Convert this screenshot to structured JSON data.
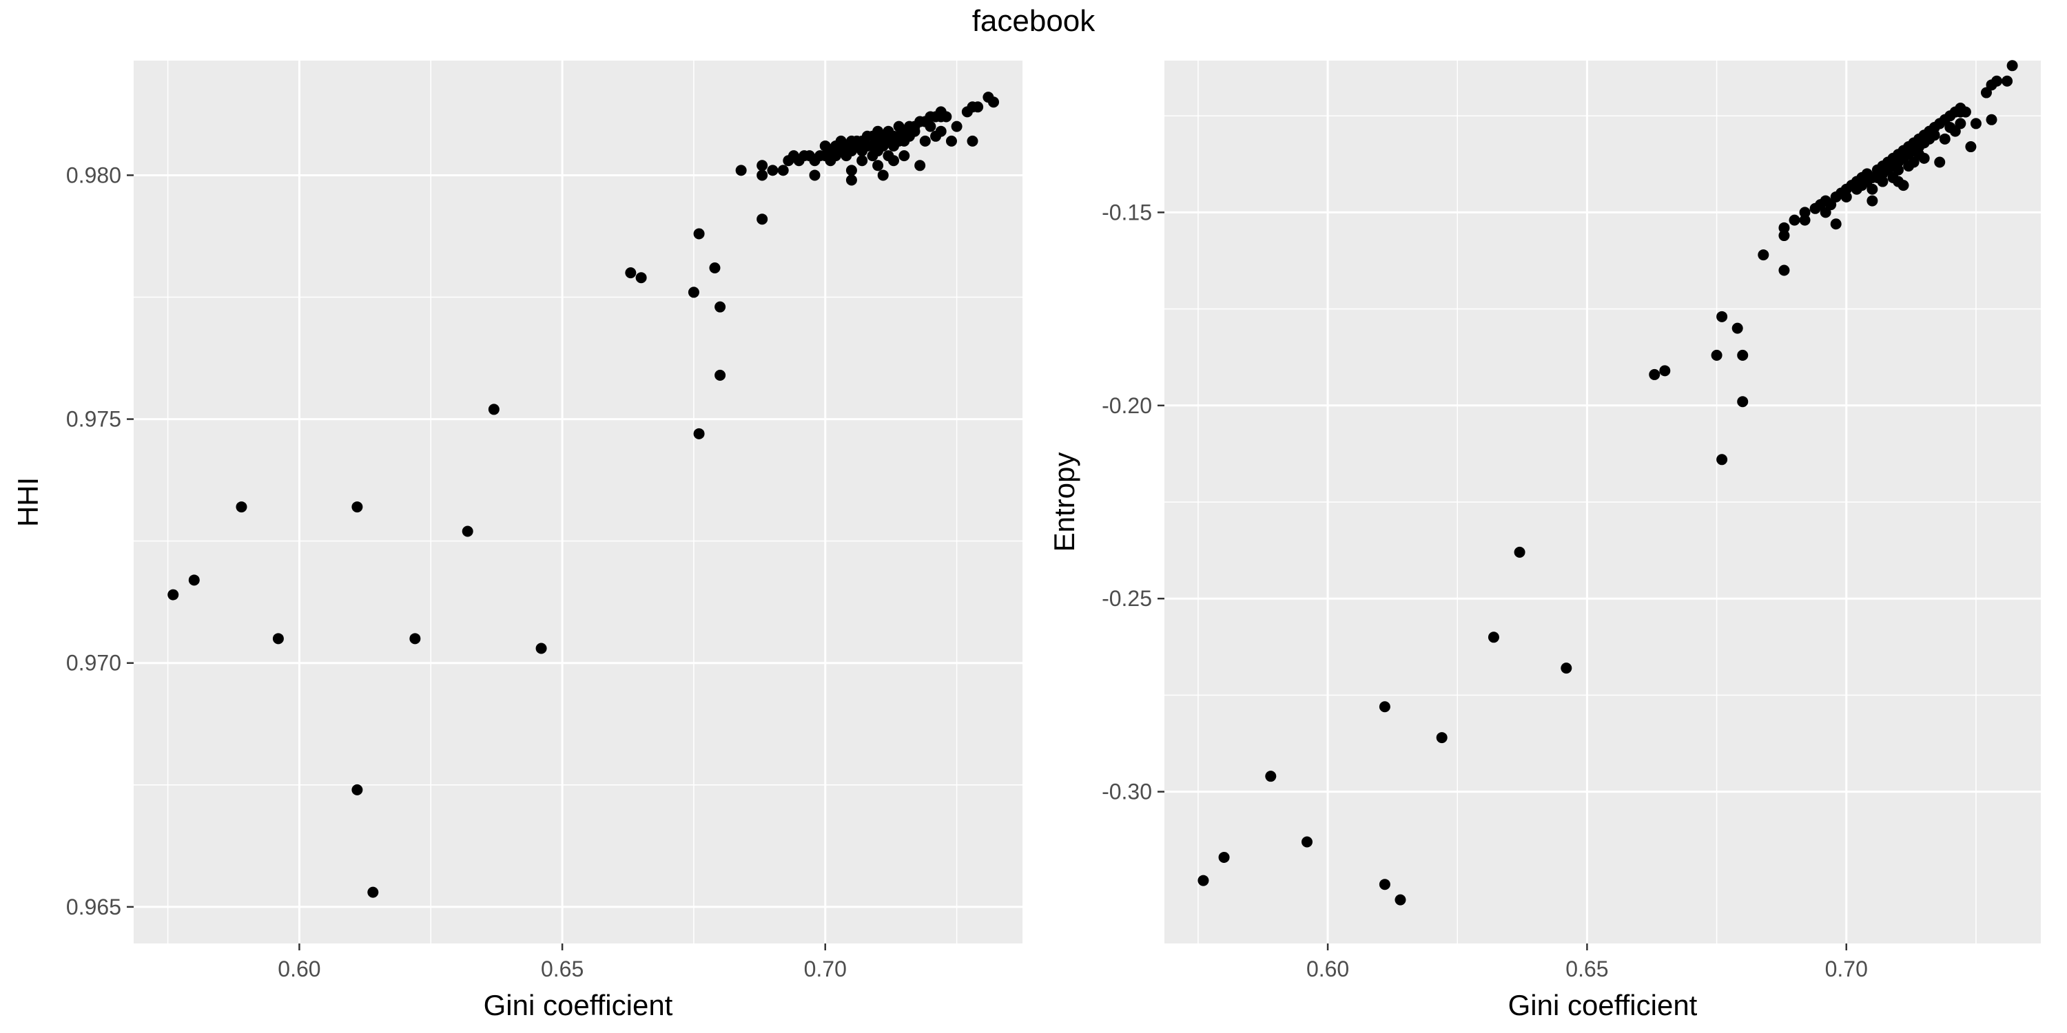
{
  "page_title": "facebook",
  "chart_data": [
    {
      "type": "scatter",
      "title": "",
      "xlabel": "Gini coefficient",
      "ylabel": "HHI",
      "xlim": [
        0.5685,
        0.7375
      ],
      "ylim": [
        0.96425,
        0.98235
      ],
      "xticks": [
        0.6,
        0.65,
        0.7
      ],
      "xtick_labels": [
        "0.60",
        "0.65",
        "0.70"
      ],
      "yticks": [
        0.965,
        0.97,
        0.975,
        0.98
      ],
      "ytick_labels": [
        "0.965",
        "0.970",
        "0.975",
        "0.980"
      ],
      "grid": true,
      "points": [
        [
          0.576,
          0.9714
        ],
        [
          0.58,
          0.9717
        ],
        [
          0.589,
          0.9732
        ],
        [
          0.596,
          0.9705
        ],
        [
          0.611,
          0.9732
        ],
        [
          0.611,
          0.9674
        ],
        [
          0.614,
          0.9653
        ],
        [
          0.622,
          0.9705
        ],
        [
          0.632,
          0.9727
        ],
        [
          0.637,
          0.9752
        ],
        [
          0.646,
          0.9703
        ],
        [
          0.663,
          0.978
        ],
        [
          0.665,
          0.9779
        ],
        [
          0.675,
          0.9776
        ],
        [
          0.676,
          0.9747
        ],
        [
          0.676,
          0.9788
        ],
        [
          0.679,
          0.9781
        ],
        [
          0.68,
          0.9773
        ],
        [
          0.68,
          0.9759
        ],
        [
          0.684,
          0.9801
        ],
        [
          0.688,
          0.9791
        ],
        [
          0.688,
          0.98
        ],
        [
          0.688,
          0.9802
        ],
        [
          0.69,
          0.9801
        ],
        [
          0.692,
          0.9801
        ],
        [
          0.693,
          0.9803
        ],
        [
          0.694,
          0.9804
        ],
        [
          0.695,
          0.9803
        ],
        [
          0.696,
          0.9804
        ],
        [
          0.697,
          0.9804
        ],
        [
          0.698,
          0.9803
        ],
        [
          0.698,
          0.98
        ],
        [
          0.699,
          0.9804
        ],
        [
          0.7,
          0.9804
        ],
        [
          0.7,
          0.9806
        ],
        [
          0.701,
          0.9805
        ],
        [
          0.701,
          0.9803
        ],
        [
          0.702,
          0.9806
        ],
        [
          0.702,
          0.9804
        ],
        [
          0.703,
          0.9807
        ],
        [
          0.703,
          0.9805
        ],
        [
          0.704,
          0.9806
        ],
        [
          0.704,
          0.9804
        ],
        [
          0.705,
          0.9807
        ],
        [
          0.705,
          0.9805
        ],
        [
          0.705,
          0.9801
        ],
        [
          0.705,
          0.9799
        ],
        [
          0.706,
          0.9807
        ],
        [
          0.706,
          0.9806
        ],
        [
          0.707,
          0.9807
        ],
        [
          0.707,
          0.9805
        ],
        [
          0.707,
          0.9803
        ],
        [
          0.708,
          0.9808
        ],
        [
          0.708,
          0.9806
        ],
        [
          0.709,
          0.9808
        ],
        [
          0.709,
          0.9806
        ],
        [
          0.709,
          0.9804
        ],
        [
          0.71,
          0.9809
        ],
        [
          0.71,
          0.9807
        ],
        [
          0.71,
          0.9805
        ],
        [
          0.71,
          0.9802
        ],
        [
          0.711,
          0.9808
        ],
        [
          0.711,
          0.9806
        ],
        [
          0.711,
          0.98
        ],
        [
          0.712,
          0.9809
        ],
        [
          0.712,
          0.9807
        ],
        [
          0.712,
          0.9804
        ],
        [
          0.713,
          0.9808
        ],
        [
          0.713,
          0.9806
        ],
        [
          0.713,
          0.9803
        ],
        [
          0.714,
          0.981
        ],
        [
          0.714,
          0.9808
        ],
        [
          0.714,
          0.9807
        ],
        [
          0.715,
          0.9809
        ],
        [
          0.715,
          0.9807
        ],
        [
          0.715,
          0.9804
        ],
        [
          0.716,
          0.981
        ],
        [
          0.716,
          0.9808
        ],
        [
          0.717,
          0.981
        ],
        [
          0.717,
          0.9809
        ],
        [
          0.718,
          0.9811
        ],
        [
          0.718,
          0.9802
        ],
        [
          0.719,
          0.9811
        ],
        [
          0.719,
          0.9807
        ],
        [
          0.72,
          0.9812
        ],
        [
          0.72,
          0.981
        ],
        [
          0.721,
          0.9812
        ],
        [
          0.721,
          0.9808
        ],
        [
          0.722,
          0.9813
        ],
        [
          0.722,
          0.9812
        ],
        [
          0.722,
          0.9809
        ],
        [
          0.723,
          0.9812
        ],
        [
          0.724,
          0.9807
        ],
        [
          0.725,
          0.981
        ],
        [
          0.727,
          0.9813
        ],
        [
          0.728,
          0.9814
        ],
        [
          0.728,
          0.9807
        ],
        [
          0.729,
          0.9814
        ],
        [
          0.731,
          0.9816
        ],
        [
          0.732,
          0.9815
        ]
      ]
    },
    {
      "type": "scatter",
      "title": "",
      "xlabel": "Gini coefficient",
      "ylabel": "Entropy",
      "xlim": [
        0.5685,
        0.7375
      ],
      "ylim": [
        -0.3393,
        -0.1107
      ],
      "xticks": [
        0.6,
        0.65,
        0.7
      ],
      "xtick_labels": [
        "0.60",
        "0.65",
        "0.70"
      ],
      "yticks": [
        -0.3,
        -0.25,
        -0.2,
        -0.15
      ],
      "ytick_labels": [
        "-0.30",
        "-0.25",
        "-0.20",
        "-0.15"
      ],
      "grid": true,
      "points": [
        [
          0.576,
          -0.323
        ],
        [
          0.58,
          -0.317
        ],
        [
          0.589,
          -0.296
        ],
        [
          0.596,
          -0.313
        ],
        [
          0.611,
          -0.278
        ],
        [
          0.611,
          -0.324
        ],
        [
          0.614,
          -0.328
        ],
        [
          0.622,
          -0.286
        ],
        [
          0.632,
          -0.26
        ],
        [
          0.637,
          -0.238
        ],
        [
          0.646,
          -0.268
        ],
        [
          0.663,
          -0.192
        ],
        [
          0.665,
          -0.191
        ],
        [
          0.675,
          -0.187
        ],
        [
          0.676,
          -0.214
        ],
        [
          0.676,
          -0.177
        ],
        [
          0.679,
          -0.18
        ],
        [
          0.68,
          -0.199
        ],
        [
          0.68,
          -0.187
        ],
        [
          0.684,
          -0.161
        ],
        [
          0.688,
          -0.165
        ],
        [
          0.688,
          -0.156
        ],
        [
          0.688,
          -0.154
        ],
        [
          0.69,
          -0.152
        ],
        [
          0.692,
          -0.15
        ],
        [
          0.692,
          -0.152
        ],
        [
          0.694,
          -0.149
        ],
        [
          0.695,
          -0.148
        ],
        [
          0.696,
          -0.147
        ],
        [
          0.696,
          -0.15
        ],
        [
          0.697,
          -0.148
        ],
        [
          0.698,
          -0.153
        ],
        [
          0.698,
          -0.146
        ],
        [
          0.699,
          -0.145
        ],
        [
          0.7,
          -0.144
        ],
        [
          0.7,
          -0.146
        ],
        [
          0.701,
          -0.143
        ],
        [
          0.702,
          -0.144
        ],
        [
          0.702,
          -0.142
        ],
        [
          0.703,
          -0.143
        ],
        [
          0.703,
          -0.141
        ],
        [
          0.704,
          -0.142
        ],
        [
          0.704,
          -0.14
        ],
        [
          0.705,
          -0.141
        ],
        [
          0.705,
          -0.144
        ],
        [
          0.705,
          -0.147
        ],
        [
          0.706,
          -0.139
        ],
        [
          0.706,
          -0.141
        ],
        [
          0.707,
          -0.138
        ],
        [
          0.707,
          -0.14
        ],
        [
          0.707,
          -0.142
        ],
        [
          0.708,
          -0.137
        ],
        [
          0.708,
          -0.139
        ],
        [
          0.709,
          -0.136
        ],
        [
          0.709,
          -0.138
        ],
        [
          0.709,
          -0.141
        ],
        [
          0.71,
          -0.135
        ],
        [
          0.71,
          -0.137
        ],
        [
          0.71,
          -0.139
        ],
        [
          0.71,
          -0.142
        ],
        [
          0.711,
          -0.134
        ],
        [
          0.711,
          -0.136
        ],
        [
          0.711,
          -0.143
        ],
        [
          0.712,
          -0.133
        ],
        [
          0.712,
          -0.135
        ],
        [
          0.712,
          -0.138
        ],
        [
          0.713,
          -0.132
        ],
        [
          0.713,
          -0.134
        ],
        [
          0.713,
          -0.137
        ],
        [
          0.714,
          -0.131
        ],
        [
          0.714,
          -0.133
        ],
        [
          0.714,
          -0.135
        ],
        [
          0.715,
          -0.13
        ],
        [
          0.715,
          -0.132
        ],
        [
          0.715,
          -0.136
        ],
        [
          0.716,
          -0.129
        ],
        [
          0.716,
          -0.131
        ],
        [
          0.717,
          -0.128
        ],
        [
          0.717,
          -0.13
        ],
        [
          0.718,
          -0.127
        ],
        [
          0.718,
          -0.137
        ],
        [
          0.719,
          -0.126
        ],
        [
          0.719,
          -0.131
        ],
        [
          0.72,
          -0.125
        ],
        [
          0.72,
          -0.128
        ],
        [
          0.721,
          -0.124
        ],
        [
          0.721,
          -0.129
        ],
        [
          0.722,
          -0.123
        ],
        [
          0.722,
          -0.124
        ],
        [
          0.722,
          -0.127
        ],
        [
          0.723,
          -0.124
        ],
        [
          0.724,
          -0.133
        ],
        [
          0.725,
          -0.127
        ],
        [
          0.727,
          -0.119
        ],
        [
          0.728,
          -0.117
        ],
        [
          0.728,
          -0.126
        ],
        [
          0.729,
          -0.116
        ],
        [
          0.731,
          -0.116
        ],
        [
          0.732,
          -0.112
        ]
      ]
    }
  ]
}
